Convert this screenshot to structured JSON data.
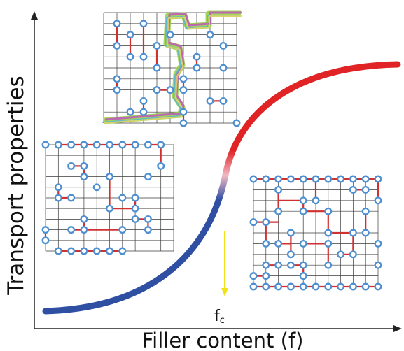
{
  "y_axis_label": "Transport properties",
  "x_axis_label": "Filler content (f)",
  "threshold_label": "f",
  "threshold_subscript": "c",
  "colors": {
    "curve_low": "#2f4fa3",
    "curve_mid": "#f2b8c4",
    "curve_high": "#e02426",
    "threshold_arrow": "#f2e21a",
    "lattice_site": "#4d8fd1",
    "bond": "#d03030"
  },
  "insets": [
    {
      "name": "percolated-network-with-path",
      "n": 10,
      "bonds": [
        [
          1,
          1,
          1,
          3
        ],
        [
          3,
          1,
          3,
          4
        ],
        [
          2,
          2,
          2,
          4
        ],
        [
          4,
          3,
          4,
          5
        ],
        [
          1,
          6,
          1,
          7
        ],
        [
          6,
          6,
          6,
          7
        ],
        [
          4,
          7,
          5,
          7
        ],
        [
          8,
          8,
          9,
          8
        ],
        [
          3,
          8,
          3,
          9
        ],
        [
          6,
          9,
          6,
          10
        ],
        [
          7,
          4,
          7,
          5
        ]
      ],
      "sites": [
        [
          1,
          1
        ],
        [
          1,
          3
        ],
        [
          3,
          1
        ],
        [
          3,
          4
        ],
        [
          2,
          2
        ],
        [
          2,
          4
        ],
        [
          4,
          3
        ],
        [
          4,
          5
        ],
        [
          1,
          6
        ],
        [
          1,
          7
        ],
        [
          6,
          6
        ],
        [
          6,
          7
        ],
        [
          4,
          7
        ],
        [
          5,
          7
        ],
        [
          8,
          8
        ],
        [
          9,
          8
        ],
        [
          3,
          8
        ],
        [
          3,
          9
        ],
        [
          6,
          9
        ],
        [
          6,
          10
        ],
        [
          7,
          4
        ],
        [
          7,
          5
        ],
        [
          8,
          2
        ],
        [
          9,
          3
        ],
        [
          5,
          2
        ],
        [
          10,
          10
        ],
        [
          9,
          5
        ],
        [
          2,
          9
        ]
      ]
    },
    {
      "name": "sparse-network-below-threshold",
      "n": 10,
      "bonds": [
        [
          1,
          0,
          7,
          0
        ],
        [
          1,
          10,
          6,
          10
        ],
        [
          8,
          0,
          9,
          0
        ],
        [
          9,
          0,
          9,
          2
        ],
        [
          2,
          2,
          3,
          2
        ],
        [
          3,
          2,
          3,
          3
        ],
        [
          5,
          3,
          5,
          6
        ],
        [
          5,
          6,
          7,
          6
        ],
        [
          7,
          5,
          7,
          6
        ],
        [
          1,
          4,
          1,
          5
        ],
        [
          1,
          5,
          2,
          5
        ],
        [
          3,
          7,
          3,
          8
        ],
        [
          3,
          8,
          6,
          8
        ],
        [
          2,
          8,
          3,
          8
        ],
        [
          7,
          7,
          8,
          7
        ],
        [
          8,
          7,
          8,
          8
        ],
        [
          0,
          8,
          0,
          9
        ]
      ],
      "sites": [
        [
          0,
          0
        ],
        [
          1,
          0
        ],
        [
          2,
          0
        ],
        [
          3,
          0
        ],
        [
          4,
          0
        ],
        [
          5,
          0
        ],
        [
          6,
          0
        ],
        [
          7,
          0
        ],
        [
          8,
          0
        ],
        [
          9,
          0
        ],
        [
          9,
          2
        ],
        [
          2,
          2
        ],
        [
          3,
          2
        ],
        [
          3,
          3
        ],
        [
          5,
          3
        ],
        [
          5,
          6
        ],
        [
          7,
          6
        ],
        [
          7,
          5
        ],
        [
          1,
          4
        ],
        [
          1,
          5
        ],
        [
          2,
          5
        ],
        [
          3,
          7
        ],
        [
          3,
          8
        ],
        [
          6,
          8
        ],
        [
          2,
          8
        ],
        [
          7,
          7
        ],
        [
          8,
          7
        ],
        [
          8,
          8
        ],
        [
          0,
          8
        ],
        [
          0,
          9
        ],
        [
          1,
          10
        ],
        [
          2,
          10
        ],
        [
          3,
          10
        ],
        [
          4,
          10
        ],
        [
          5,
          10
        ],
        [
          6,
          10
        ],
        [
          4,
          4
        ],
        [
          8,
          3
        ],
        [
          6,
          5
        ]
      ]
    },
    {
      "name": "dense-network-above-threshold",
      "n": 10,
      "bonds": [
        [
          0,
          0,
          10,
          0
        ],
        [
          0,
          10,
          10,
          10
        ],
        [
          10,
          0,
          10,
          2
        ],
        [
          5,
          0,
          5,
          2
        ],
        [
          2,
          1,
          2,
          3
        ],
        [
          2,
          2,
          4,
          2
        ],
        [
          4,
          2,
          4,
          3
        ],
        [
          4,
          3,
          6,
          3
        ],
        [
          6,
          3,
          6,
          5
        ],
        [
          6,
          5,
          8,
          5
        ],
        [
          8,
          5,
          8,
          7
        ],
        [
          0,
          4,
          2,
          4
        ],
        [
          1,
          4,
          1,
          6
        ],
        [
          2,
          6,
          3,
          6
        ],
        [
          3,
          5,
          3,
          7
        ],
        [
          4,
          6,
          6,
          6
        ],
        [
          6,
          6,
          6,
          8
        ],
        [
          7,
          7,
          8,
          7
        ],
        [
          3,
          8,
          4,
          8
        ],
        [
          4,
          8,
          4,
          9
        ],
        [
          1,
          8,
          2,
          8
        ],
        [
          9,
          3,
          9,
          5
        ],
        [
          0,
          9,
          1,
          9
        ],
        [
          8,
          1,
          9,
          1
        ]
      ],
      "sites": [
        [
          0,
          0
        ],
        [
          1,
          0
        ],
        [
          2,
          0
        ],
        [
          3,
          0
        ],
        [
          4,
          0
        ],
        [
          5,
          0
        ],
        [
          6,
          0
        ],
        [
          7,
          0
        ],
        [
          8,
          0
        ],
        [
          9,
          0
        ],
        [
          10,
          0
        ],
        [
          10,
          2
        ],
        [
          5,
          2
        ],
        [
          2,
          1
        ],
        [
          2,
          3
        ],
        [
          4,
          2
        ],
        [
          4,
          3
        ],
        [
          6,
          3
        ],
        [
          6,
          5
        ],
        [
          8,
          5
        ],
        [
          8,
          7
        ],
        [
          0,
          4
        ],
        [
          1,
          4
        ],
        [
          1,
          6
        ],
        [
          2,
          6
        ],
        [
          3,
          5
        ],
        [
          3,
          7
        ],
        [
          4,
          6
        ],
        [
          6,
          6
        ],
        [
          6,
          8
        ],
        [
          7,
          7
        ],
        [
          3,
          8
        ],
        [
          4,
          8
        ],
        [
          4,
          9
        ],
        [
          1,
          8
        ],
        [
          2,
          8
        ],
        [
          9,
          3
        ],
        [
          9,
          5
        ],
        [
          0,
          9
        ],
        [
          1,
          9
        ],
        [
          8,
          1
        ],
        [
          9,
          1
        ],
        [
          10,
          6
        ],
        [
          10,
          8
        ],
        [
          0,
          10
        ],
        [
          1,
          10
        ],
        [
          2,
          10
        ],
        [
          3,
          10
        ],
        [
          4,
          10
        ],
        [
          5,
          10
        ],
        [
          6,
          10
        ],
        [
          7,
          10
        ],
        [
          8,
          10
        ],
        [
          9,
          10
        ],
        [
          10,
          10
        ]
      ]
    }
  ]
}
